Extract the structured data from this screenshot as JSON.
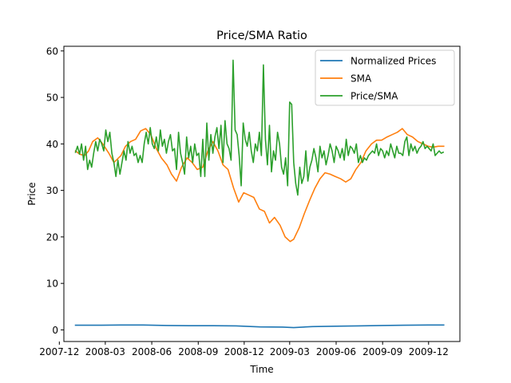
{
  "chart_data": {
    "type": "line",
    "title": "Price/SMA Ratio",
    "xlabel": "Time",
    "ylabel": "Price",
    "xlim": [
      "2007-12-10",
      "2010-02-01"
    ],
    "ylim": [
      -2.5,
      61
    ],
    "yticks": [
      0,
      10,
      20,
      30,
      40,
      50,
      60
    ],
    "xticks": [
      {
        "date": "2007-12-01",
        "label": "2007-12"
      },
      {
        "date": "2008-03-01",
        "label": "2008-03"
      },
      {
        "date": "2008-06-01",
        "label": "2008-06"
      },
      {
        "date": "2008-09-01",
        "label": "2008-09"
      },
      {
        "date": "2008-12-01",
        "label": "2008-12"
      },
      {
        "date": "2009-03-01",
        "label": "2009-03"
      },
      {
        "date": "2009-06-01",
        "label": "2009-06"
      },
      {
        "date": "2009-09-01",
        "label": "2009-09"
      },
      {
        "date": "2009-12-01",
        "label": "2009-12"
      }
    ],
    "grid": false,
    "legend_position": "top-right",
    "series": [
      {
        "name": "Normalized Prices",
        "color": "#1f77b4",
        "x": [
          "2008-01-02",
          "2008-02-15",
          "2008-04-01",
          "2008-05-15",
          "2008-07-01",
          "2008-08-15",
          "2008-10-01",
          "2008-11-15",
          "2009-01-01",
          "2009-02-15",
          "2009-03-09",
          "2009-04-15",
          "2009-06-01",
          "2009-07-15",
          "2009-09-01",
          "2009-10-15",
          "2009-12-01",
          "2009-12-31"
        ],
        "y": [
          1.0,
          1.0,
          1.05,
          1.05,
          0.95,
          0.9,
          0.9,
          0.85,
          0.65,
          0.6,
          0.5,
          0.7,
          0.8,
          0.85,
          0.95,
          1.0,
          1.05,
          1.05
        ]
      },
      {
        "name": "SMA",
        "color": "#ff7f0e",
        "x": [
          "2008-01-02",
          "2008-01-10",
          "2008-01-20",
          "2008-01-28",
          "2008-02-05",
          "2008-02-15",
          "2008-02-25",
          "2008-03-08",
          "2008-03-18",
          "2008-04-01",
          "2008-04-10",
          "2008-04-20",
          "2008-04-30",
          "2008-05-10",
          "2008-05-20",
          "2008-05-30",
          "2008-06-10",
          "2008-06-20",
          "2008-07-01",
          "2008-07-10",
          "2008-07-20",
          "2008-07-30",
          "2008-08-10",
          "2008-08-20",
          "2008-08-30",
          "2008-09-10",
          "2008-09-20",
          "2008-09-30",
          "2008-10-10",
          "2008-10-20",
          "2008-10-30",
          "2008-11-10",
          "2008-11-20",
          "2008-11-30",
          "2008-12-10",
          "2008-12-20",
          "2008-12-31",
          "2009-01-10",
          "2009-01-20",
          "2009-01-30",
          "2009-02-10",
          "2009-02-20",
          "2009-03-02",
          "2009-03-09",
          "2009-03-20",
          "2009-03-30",
          "2009-04-10",
          "2009-04-20",
          "2009-04-30",
          "2009-05-10",
          "2009-05-20",
          "2009-05-30",
          "2009-06-10",
          "2009-06-20",
          "2009-06-30",
          "2009-07-10",
          "2009-07-20",
          "2009-07-30",
          "2009-08-10",
          "2009-08-20",
          "2009-08-30",
          "2009-09-10",
          "2009-09-20",
          "2009-09-30",
          "2009-10-10",
          "2009-10-20",
          "2009-10-30",
          "2009-11-10",
          "2009-11-20",
          "2009-11-30",
          "2009-12-10",
          "2009-12-20",
          "2009-12-31"
        ],
        "y": [
          38.5,
          37.8,
          37.5,
          38.5,
          40.5,
          41.3,
          40.0,
          38.0,
          36.0,
          37.5,
          39.5,
          40.5,
          41.0,
          42.8,
          43.3,
          42.0,
          39.0,
          37.0,
          35.5,
          33.5,
          32.0,
          35.0,
          37.0,
          36.0,
          34.5,
          35.0,
          38.5,
          40.5,
          38.5,
          35.5,
          34.5,
          30.5,
          27.5,
          29.5,
          29.0,
          28.5,
          26.0,
          25.5,
          23.0,
          24.2,
          22.5,
          20.0,
          19.0,
          19.5,
          22.0,
          25.0,
          28.0,
          30.5,
          32.5,
          33.8,
          33.5,
          33.0,
          32.5,
          31.8,
          32.5,
          34.5,
          36.0,
          38.5,
          40.0,
          40.8,
          40.8,
          41.5,
          42.0,
          42.5,
          43.3,
          42.0,
          41.5,
          40.5,
          40.0,
          39.5,
          39.3,
          39.5,
          39.5
        ]
      },
      {
        "name": "Price/SMA",
        "color": "#2ca02c",
        "x": [
          "2008-01-02",
          "2008-01-06",
          "2008-01-10",
          "2008-01-14",
          "2008-01-18",
          "2008-01-22",
          "2008-01-26",
          "2008-01-30",
          "2008-02-03",
          "2008-02-07",
          "2008-02-11",
          "2008-02-15",
          "2008-02-19",
          "2008-02-23",
          "2008-02-27",
          "2008-03-02",
          "2008-03-06",
          "2008-03-10",
          "2008-03-14",
          "2008-03-18",
          "2008-03-22",
          "2008-03-26",
          "2008-03-30",
          "2008-04-03",
          "2008-04-07",
          "2008-04-11",
          "2008-04-15",
          "2008-04-19",
          "2008-04-23",
          "2008-04-27",
          "2008-05-01",
          "2008-05-05",
          "2008-05-09",
          "2008-05-13",
          "2008-05-17",
          "2008-05-21",
          "2008-05-25",
          "2008-05-29",
          "2008-06-02",
          "2008-06-06",
          "2008-06-10",
          "2008-06-14",
          "2008-06-18",
          "2008-06-22",
          "2008-06-26",
          "2008-06-30",
          "2008-07-04",
          "2008-07-08",
          "2008-07-12",
          "2008-07-16",
          "2008-07-20",
          "2008-07-24",
          "2008-07-28",
          "2008-08-01",
          "2008-08-05",
          "2008-08-09",
          "2008-08-13",
          "2008-08-17",
          "2008-08-21",
          "2008-08-25",
          "2008-08-29",
          "2008-09-02",
          "2008-09-06",
          "2008-09-10",
          "2008-09-14",
          "2008-09-18",
          "2008-09-22",
          "2008-09-26",
          "2008-09-30",
          "2008-10-04",
          "2008-10-08",
          "2008-10-12",
          "2008-10-16",
          "2008-10-20",
          "2008-10-24",
          "2008-10-28",
          "2008-11-01",
          "2008-11-05",
          "2008-11-09",
          "2008-11-13",
          "2008-11-17",
          "2008-11-21",
          "2008-11-25",
          "2008-11-29",
          "2008-12-03",
          "2008-12-07",
          "2008-12-11",
          "2008-12-15",
          "2008-12-19",
          "2008-12-23",
          "2008-12-27",
          "2008-12-31",
          "2009-01-04",
          "2009-01-08",
          "2009-01-12",
          "2009-01-16",
          "2009-01-20",
          "2009-01-24",
          "2009-01-28",
          "2009-02-01",
          "2009-02-05",
          "2009-02-09",
          "2009-02-13",
          "2009-02-17",
          "2009-02-21",
          "2009-02-25",
          "2009-03-01",
          "2009-03-05",
          "2009-03-09",
          "2009-03-13",
          "2009-03-17",
          "2009-03-21",
          "2009-03-25",
          "2009-03-29",
          "2009-04-02",
          "2009-04-06",
          "2009-04-10",
          "2009-04-14",
          "2009-04-18",
          "2009-04-22",
          "2009-04-26",
          "2009-04-30",
          "2009-05-04",
          "2009-05-08",
          "2009-05-12",
          "2009-05-16",
          "2009-05-20",
          "2009-05-24",
          "2009-05-28",
          "2009-06-01",
          "2009-06-05",
          "2009-06-09",
          "2009-06-13",
          "2009-06-17",
          "2009-06-21",
          "2009-06-25",
          "2009-06-29",
          "2009-07-03",
          "2009-07-07",
          "2009-07-11",
          "2009-07-15",
          "2009-07-19",
          "2009-07-23",
          "2009-07-27",
          "2009-07-31",
          "2009-08-04",
          "2009-08-08",
          "2009-08-12",
          "2009-08-16",
          "2009-08-20",
          "2009-08-24",
          "2009-08-28",
          "2009-09-01",
          "2009-09-05",
          "2009-09-09",
          "2009-09-13",
          "2009-09-17",
          "2009-09-21",
          "2009-09-25",
          "2009-09-29",
          "2009-10-03",
          "2009-10-07",
          "2009-10-11",
          "2009-10-15",
          "2009-10-19",
          "2009-10-23",
          "2009-10-27",
          "2009-10-31",
          "2009-11-04",
          "2009-11-08",
          "2009-11-12",
          "2009-11-16",
          "2009-11-20",
          "2009-11-24",
          "2009-11-28",
          "2009-12-02",
          "2009-12-06",
          "2009-12-10",
          "2009-12-14",
          "2009-12-18",
          "2009-12-22",
          "2009-12-26",
          "2009-12-30"
        ],
        "y": [
          38.2,
          39.5,
          37.8,
          40.0,
          36.5,
          39.5,
          34.5,
          36.5,
          35.0,
          38.0,
          40.5,
          38.5,
          41.0,
          40.0,
          38.5,
          43.0,
          40.5,
          42.5,
          38.0,
          36.0,
          33.0,
          36.5,
          33.5,
          36.0,
          38.5,
          36.5,
          40.5,
          38.0,
          39.5,
          37.5,
          38.0,
          36.0,
          37.5,
          36.0,
          40.0,
          42.5,
          40.0,
          43.5,
          40.0,
          39.0,
          41.5,
          38.5,
          43.0,
          39.5,
          41.0,
          38.0,
          40.5,
          42.0,
          38.5,
          39.0,
          34.5,
          42.5,
          38.0,
          36.0,
          33.5,
          41.5,
          37.0,
          39.5,
          36.0,
          40.0,
          37.5,
          38.0,
          33.0,
          41.0,
          33.0,
          44.5,
          36.5,
          42.0,
          38.0,
          41.5,
          43.5,
          39.0,
          44.0,
          36.0,
          45.0,
          40.0,
          39.0,
          36.5,
          58.0,
          43.0,
          42.0,
          37.5,
          31.0,
          44.5,
          41.0,
          39.5,
          42.5,
          38.5,
          36.0,
          40.0,
          38.5,
          42.5,
          37.5,
          57.0,
          41.0,
          35.5,
          44.0,
          34.0,
          38.5,
          36.5,
          42.5,
          40.0,
          35.0,
          33.5,
          37.0,
          31.0,
          49.0,
          48.5,
          36.0,
          31.5,
          29.0,
          35.0,
          31.5,
          33.0,
          38.5,
          32.0,
          35.0,
          36.5,
          39.0,
          37.0,
          34.0,
          39.5,
          37.0,
          38.5,
          35.5,
          37.5,
          40.0,
          38.5,
          36.0,
          39.5,
          38.5,
          37.0,
          39.0,
          36.5,
          41.0,
          37.5,
          39.5,
          39.0,
          38.0,
          40.0,
          36.0,
          37.5,
          36.0,
          37.0,
          36.5,
          37.5,
          38.0,
          38.5,
          38.0,
          40.0,
          37.5,
          39.0,
          38.5,
          37.0,
          38.5,
          37.5,
          40.0,
          38.5,
          37.0,
          39.5,
          38.0,
          38.0,
          37.5,
          40.5,
          41.5,
          37.5,
          40.0,
          38.5,
          39.5,
          38.0,
          39.0,
          39.5,
          40.5,
          39.0,
          39.5,
          39.0,
          38.5,
          40.0,
          37.5,
          38.0,
          38.5,
          38.0,
          38.2
        ]
      }
    ]
  }
}
